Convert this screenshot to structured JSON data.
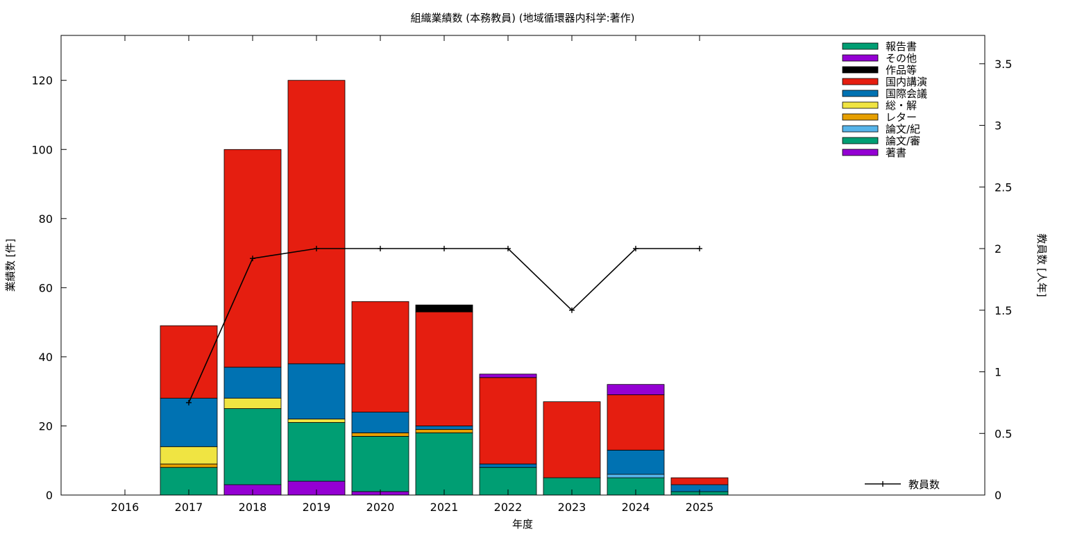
{
  "chart_data": {
    "type": "bar",
    "stacked": true,
    "title": "組織業績数 (本務教員) (地域循環器内科学:著作)",
    "xlabel": "年度",
    "ylabel": "業績数 [件]",
    "y2label": "教員数 [人年]",
    "categories": [
      "2016",
      "2017",
      "2018",
      "2019",
      "2020",
      "2021",
      "2022",
      "2023",
      "2024",
      "2025"
    ],
    "ylim": [
      0,
      133
    ],
    "yticks": [
      0,
      20,
      40,
      60,
      80,
      100,
      120
    ],
    "y2lim": [
      0,
      3.73
    ],
    "y2ticks": [
      0,
      0.5,
      1,
      1.5,
      2,
      2.5,
      3,
      3.5
    ],
    "y2tick_labels": [
      "0",
      "0.5",
      "1",
      "1.5",
      "2",
      "2.5",
      "3",
      "3.5"
    ],
    "grid": false,
    "legend_position": "top-right",
    "series": [
      {
        "name": "著書",
        "color": "#9400d3",
        "values": [
          0,
          0,
          3,
          4,
          1,
          0,
          0,
          0,
          0,
          0
        ]
      },
      {
        "name": "論文/審",
        "color": "#009e73",
        "values": [
          0,
          8,
          22,
          17,
          16,
          18,
          8,
          5,
          5,
          1
        ]
      },
      {
        "name": "論文/紀",
        "color": "#56b4e9",
        "values": [
          0,
          0,
          0,
          0,
          0,
          0,
          0,
          0,
          1,
          0
        ]
      },
      {
        "name": "レター",
        "color": "#e69f00",
        "values": [
          0,
          1,
          0,
          0,
          1,
          1,
          0,
          0,
          0,
          0
        ]
      },
      {
        "name": "総・解",
        "color": "#f0e442",
        "values": [
          0,
          5,
          3,
          1,
          0,
          0,
          0,
          0,
          0,
          0
        ]
      },
      {
        "name": "国際会議",
        "color": "#0072b2",
        "values": [
          0,
          14,
          9,
          16,
          6,
          1,
          1,
          0,
          7,
          2
        ]
      },
      {
        "name": "国内講演",
        "color": "#e51e10",
        "values": [
          0,
          21,
          63,
          82,
          32,
          33,
          25,
          22,
          16,
          2
        ]
      },
      {
        "name": "作品等",
        "color": "#000000",
        "values": [
          0,
          0,
          0,
          0,
          0,
          2,
          0,
          0,
          0,
          0
        ]
      },
      {
        "name": "その他",
        "color": "#9400d3",
        "values": [
          0,
          0,
          0,
          0,
          0,
          0,
          1,
          0,
          3,
          0
        ]
      },
      {
        "name": "報告書",
        "color": "#009e73",
        "values": [
          0,
          0,
          0,
          0,
          0,
          0,
          0,
          0,
          0,
          0
        ]
      }
    ],
    "legend_order": [
      "報告書",
      "その他",
      "作品等",
      "国内講演",
      "国際会議",
      "総・解",
      "レター",
      "論文/紀",
      "論文/審",
      "著書"
    ],
    "line_series": {
      "name": "教員数",
      "axis": "y2",
      "color": "#000000",
      "values": [
        null,
        0.75,
        1.92,
        2.0,
        2.0,
        2.0,
        2.0,
        1.5,
        2.0,
        2.0
      ]
    }
  }
}
